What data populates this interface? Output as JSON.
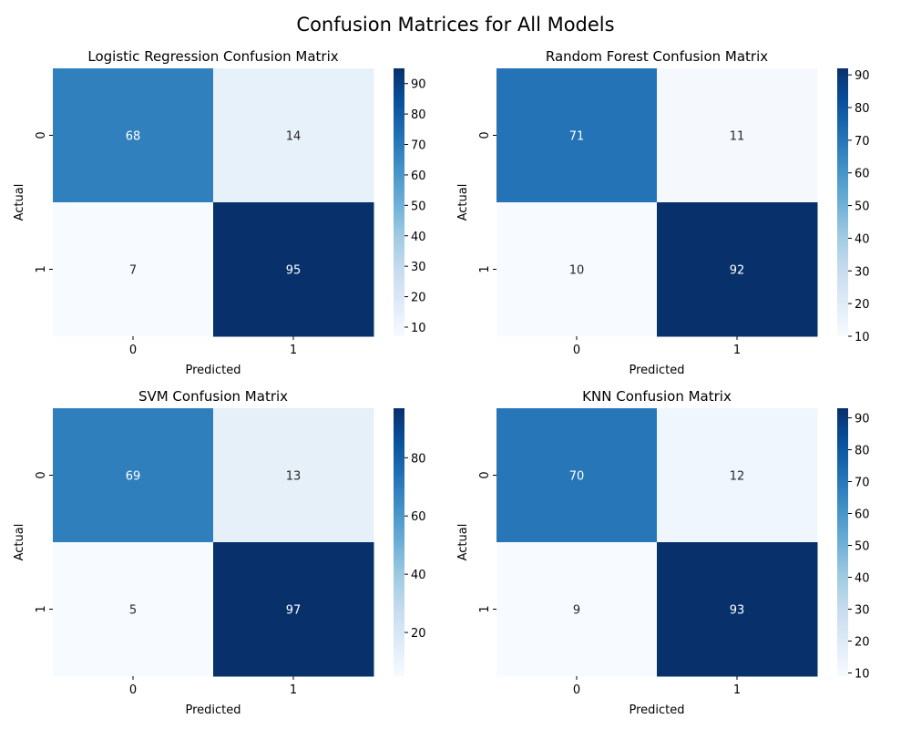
{
  "figure": {
    "title": "Confusion Matrices for All Models"
  },
  "colormap": {
    "name": "Blues",
    "light": "#f7fbff",
    "dark": "#08306b",
    "dark_text": "#262626",
    "light_text": "#ffffff"
  },
  "chart_data": [
    {
      "type": "heatmap",
      "title": "Logistic Regression Confusion Matrix",
      "xlabel": "Predicted",
      "ylabel": "Actual",
      "x_categories": [
        "0",
        "1"
      ],
      "y_categories": [
        "0",
        "1"
      ],
      "values": [
        [
          68,
          14
        ],
        [
          7,
          95
        ]
      ],
      "colorbar": {
        "ticks": [
          10,
          20,
          30,
          40,
          50,
          60,
          70,
          80,
          90
        ]
      }
    },
    {
      "type": "heatmap",
      "title": "Random Forest Confusion Matrix",
      "xlabel": "Predicted",
      "ylabel": "Actual",
      "x_categories": [
        "0",
        "1"
      ],
      "y_categories": [
        "0",
        "1"
      ],
      "values": [
        [
          71,
          11
        ],
        [
          10,
          92
        ]
      ],
      "colorbar": {
        "ticks": [
          10,
          20,
          30,
          40,
          50,
          60,
          70,
          80,
          90
        ]
      }
    },
    {
      "type": "heatmap",
      "title": "SVM Confusion Matrix",
      "xlabel": "Predicted",
      "ylabel": "Actual",
      "x_categories": [
        "0",
        "1"
      ],
      "y_categories": [
        "0",
        "1"
      ],
      "values": [
        [
          69,
          13
        ],
        [
          5,
          97
        ]
      ],
      "colorbar": {
        "ticks": [
          20,
          40,
          60,
          80
        ]
      }
    },
    {
      "type": "heatmap",
      "title": "KNN Confusion Matrix",
      "xlabel": "Predicted",
      "ylabel": "Actual",
      "x_categories": [
        "0",
        "1"
      ],
      "y_categories": [
        "0",
        "1"
      ],
      "values": [
        [
          70,
          12
        ],
        [
          9,
          93
        ]
      ],
      "colorbar": {
        "ticks": [
          10,
          20,
          30,
          40,
          50,
          60,
          70,
          80,
          90
        ]
      }
    }
  ]
}
